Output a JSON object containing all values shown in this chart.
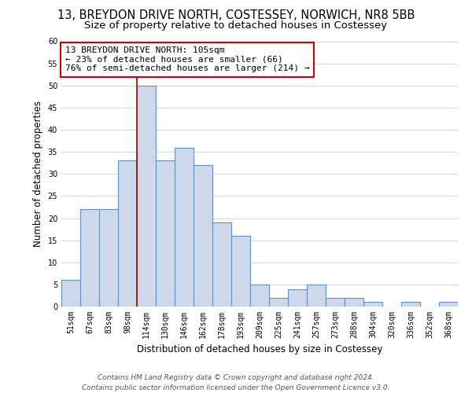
{
  "title": "13, BREYDON DRIVE NORTH, COSTESSEY, NORWICH, NR8 5BB",
  "subtitle": "Size of property relative to detached houses in Costessey",
  "xlabel": "Distribution of detached houses by size in Costessey",
  "ylabel": "Number of detached properties",
  "bar_labels": [
    "51sqm",
    "67sqm",
    "83sqm",
    "98sqm",
    "114sqm",
    "130sqm",
    "146sqm",
    "162sqm",
    "178sqm",
    "193sqm",
    "209sqm",
    "225sqm",
    "241sqm",
    "257sqm",
    "273sqm",
    "288sqm",
    "304sqm",
    "320sqm",
    "336sqm",
    "352sqm",
    "368sqm"
  ],
  "bar_values": [
    6,
    22,
    22,
    33,
    50,
    33,
    36,
    32,
    19,
    16,
    5,
    2,
    4,
    5,
    2,
    2,
    1,
    0,
    1,
    0,
    1
  ],
  "bar_color": "#cdd9ea",
  "bar_edge_color": "#6090c8",
  "property_line_index": 4,
  "annotation_line1": "13 BREYDON DRIVE NORTH: 105sqm",
  "annotation_line2": "← 23% of detached houses are smaller (66)",
  "annotation_line3": "76% of semi-detached houses are larger (214) →",
  "annotation_box_color": "#ffffff",
  "annotation_box_edge": "#cc0000",
  "red_line_color": "#aa0000",
  "ylim": [
    0,
    60
  ],
  "yticks": [
    0,
    5,
    10,
    15,
    20,
    25,
    30,
    35,
    40,
    45,
    50,
    55,
    60
  ],
  "footer_line1": "Contains HM Land Registry data © Crown copyright and database right 2024.",
  "footer_line2": "Contains public sector information licensed under the Open Government Licence v3.0.",
  "title_fontsize": 10.5,
  "subtitle_fontsize": 9.5,
  "axis_label_fontsize": 8.5,
  "tick_fontsize": 7,
  "annotation_fontsize": 8,
  "footer_fontsize": 6.5
}
